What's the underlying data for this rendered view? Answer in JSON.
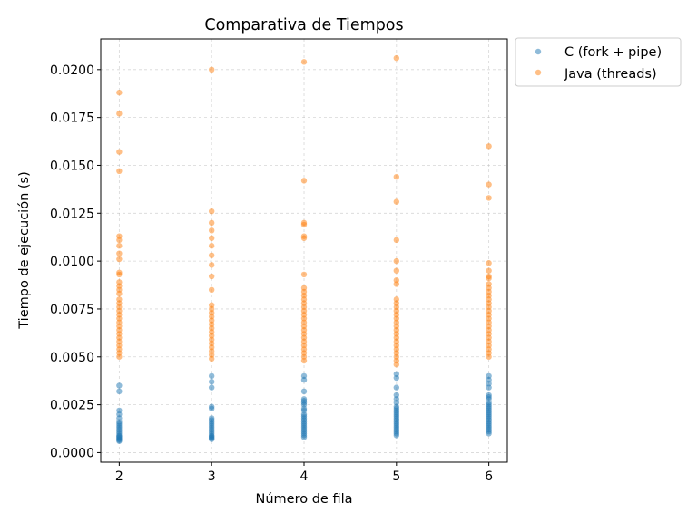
{
  "chart_data": {
    "type": "scatter",
    "title": "Comparativa de Tiempos",
    "xlabel": "Número de fila",
    "ylabel": "Tiempo de ejecución (s)",
    "xlim": [
      1.8,
      6.2
    ],
    "ylim": [
      -0.0005,
      0.0216
    ],
    "xticks": [
      2,
      3,
      4,
      5,
      6
    ],
    "yticks": [
      0.0,
      0.0025,
      0.005,
      0.0075,
      0.01,
      0.0125,
      0.015,
      0.0175,
      0.02
    ],
    "ytick_labels": [
      "0.0000",
      "0.0025",
      "0.0050",
      "0.0075",
      "0.0100",
      "0.0125",
      "0.0150",
      "0.0175",
      "0.0200"
    ],
    "grid": true,
    "legend_position": "outside-top-right",
    "series": [
      {
        "name": "C (fork + pipe)",
        "color": "#1f77b4",
        "points": [
          [
            2,
            0.0035
          ],
          [
            2,
            0.0032
          ],
          [
            2,
            0.0022
          ],
          [
            2,
            0.002
          ],
          [
            2,
            0.0018
          ],
          [
            2,
            0.0016
          ],
          [
            2,
            0.0015
          ],
          [
            2,
            0.0014
          ],
          [
            2,
            0.0013
          ],
          [
            2,
            0.0012
          ],
          [
            2,
            0.0011
          ],
          [
            2,
            0.001
          ],
          [
            2,
            0.0009
          ],
          [
            2,
            0.00085
          ],
          [
            2,
            0.0008
          ],
          [
            2,
            0.00075
          ],
          [
            2,
            0.0007
          ],
          [
            2,
            0.00065
          ],
          [
            2,
            0.0006
          ],
          [
            3,
            0.004
          ],
          [
            3,
            0.0037
          ],
          [
            3,
            0.0034
          ],
          [
            3,
            0.0024
          ],
          [
            3,
            0.0023
          ],
          [
            3,
            0.0018
          ],
          [
            3,
            0.0017
          ],
          [
            3,
            0.0016
          ],
          [
            3,
            0.0015
          ],
          [
            3,
            0.0014
          ],
          [
            3,
            0.0013
          ],
          [
            3,
            0.0012
          ],
          [
            3,
            0.0011
          ],
          [
            3,
            0.001
          ],
          [
            3,
            0.0009
          ],
          [
            3,
            0.00085
          ],
          [
            3,
            0.0008
          ],
          [
            3,
            0.00075
          ],
          [
            3,
            0.0007
          ],
          [
            4,
            0.004
          ],
          [
            4,
            0.0038
          ],
          [
            4,
            0.0032
          ],
          [
            4,
            0.0028
          ],
          [
            4,
            0.0027
          ],
          [
            4,
            0.0026
          ],
          [
            4,
            0.0025
          ],
          [
            4,
            0.0023
          ],
          [
            4,
            0.0022
          ],
          [
            4,
            0.002
          ],
          [
            4,
            0.0019
          ],
          [
            4,
            0.0018
          ],
          [
            4,
            0.0017
          ],
          [
            4,
            0.0016
          ],
          [
            4,
            0.0015
          ],
          [
            4,
            0.0014
          ],
          [
            4,
            0.0013
          ],
          [
            4,
            0.0012
          ],
          [
            4,
            0.0011
          ],
          [
            4,
            0.001
          ],
          [
            4,
            0.0009
          ],
          [
            4,
            0.0008
          ],
          [
            5,
            0.0041
          ],
          [
            5,
            0.0039
          ],
          [
            5,
            0.0034
          ],
          [
            5,
            0.003
          ],
          [
            5,
            0.0028
          ],
          [
            5,
            0.0026
          ],
          [
            5,
            0.0024
          ],
          [
            5,
            0.0023
          ],
          [
            5,
            0.0022
          ],
          [
            5,
            0.0021
          ],
          [
            5,
            0.002
          ],
          [
            5,
            0.0019
          ],
          [
            5,
            0.0018
          ],
          [
            5,
            0.0017
          ],
          [
            5,
            0.0016
          ],
          [
            5,
            0.0015
          ],
          [
            5,
            0.0014
          ],
          [
            5,
            0.0013
          ],
          [
            5,
            0.0012
          ],
          [
            5,
            0.0011
          ],
          [
            5,
            0.001
          ],
          [
            5,
            0.0009
          ],
          [
            6,
            0.004
          ],
          [
            6,
            0.0038
          ],
          [
            6,
            0.0036
          ],
          [
            6,
            0.0034
          ],
          [
            6,
            0.003
          ],
          [
            6,
            0.0029
          ],
          [
            6,
            0.0028
          ],
          [
            6,
            0.0026
          ],
          [
            6,
            0.0025
          ],
          [
            6,
            0.0024
          ],
          [
            6,
            0.0023
          ],
          [
            6,
            0.0022
          ],
          [
            6,
            0.0021
          ],
          [
            6,
            0.002
          ],
          [
            6,
            0.0019
          ],
          [
            6,
            0.0018
          ],
          [
            6,
            0.0017
          ],
          [
            6,
            0.0016
          ],
          [
            6,
            0.0015
          ],
          [
            6,
            0.0014
          ],
          [
            6,
            0.0013
          ],
          [
            6,
            0.0012
          ],
          [
            6,
            0.0011
          ],
          [
            6,
            0.001
          ]
        ]
      },
      {
        "name": "Java (threads)",
        "color": "#ff7f0e",
        "points": [
          [
            2,
            0.0188
          ],
          [
            2,
            0.0177
          ],
          [
            2,
            0.0157
          ],
          [
            2,
            0.0147
          ],
          [
            2,
            0.0113
          ],
          [
            2,
            0.0111
          ],
          [
            2,
            0.0108
          ],
          [
            2,
            0.0104
          ],
          [
            2,
            0.0101
          ],
          [
            2,
            0.0094
          ],
          [
            2,
            0.0093
          ],
          [
            2,
            0.0089
          ],
          [
            2,
            0.0087
          ],
          [
            2,
            0.0085
          ],
          [
            2,
            0.0083
          ],
          [
            2,
            0.008
          ],
          [
            2,
            0.0078
          ],
          [
            2,
            0.0076
          ],
          [
            2,
            0.0074
          ],
          [
            2,
            0.0072
          ],
          [
            2,
            0.007
          ],
          [
            2,
            0.0068
          ],
          [
            2,
            0.0066
          ],
          [
            2,
            0.0064
          ],
          [
            2,
            0.0062
          ],
          [
            2,
            0.006
          ],
          [
            2,
            0.0058
          ],
          [
            2,
            0.0056
          ],
          [
            2,
            0.0054
          ],
          [
            2,
            0.0052
          ],
          [
            2,
            0.005
          ],
          [
            3,
            0.02
          ],
          [
            3,
            0.0126
          ],
          [
            3,
            0.012
          ],
          [
            3,
            0.0116
          ],
          [
            3,
            0.0112
          ],
          [
            3,
            0.0108
          ],
          [
            3,
            0.0103
          ],
          [
            3,
            0.0098
          ],
          [
            3,
            0.0092
          ],
          [
            3,
            0.0085
          ],
          [
            3,
            0.0077
          ],
          [
            3,
            0.0075
          ],
          [
            3,
            0.0073
          ],
          [
            3,
            0.0071
          ],
          [
            3,
            0.0069
          ],
          [
            3,
            0.0067
          ],
          [
            3,
            0.0065
          ],
          [
            3,
            0.0063
          ],
          [
            3,
            0.0061
          ],
          [
            3,
            0.0059
          ],
          [
            3,
            0.0057
          ],
          [
            3,
            0.0055
          ],
          [
            3,
            0.0053
          ],
          [
            3,
            0.0051
          ],
          [
            3,
            0.0049
          ],
          [
            4,
            0.0204
          ],
          [
            4,
            0.0142
          ],
          [
            4,
            0.012
          ],
          [
            4,
            0.0119
          ],
          [
            4,
            0.0113
          ],
          [
            4,
            0.0112
          ],
          [
            4,
            0.0093
          ],
          [
            4,
            0.0086
          ],
          [
            4,
            0.0084
          ],
          [
            4,
            0.0082
          ],
          [
            4,
            0.008
          ],
          [
            4,
            0.0078
          ],
          [
            4,
            0.0076
          ],
          [
            4,
            0.0074
          ],
          [
            4,
            0.0072
          ],
          [
            4,
            0.007
          ],
          [
            4,
            0.0068
          ],
          [
            4,
            0.0066
          ],
          [
            4,
            0.0064
          ],
          [
            4,
            0.0062
          ],
          [
            4,
            0.006
          ],
          [
            4,
            0.0058
          ],
          [
            4,
            0.0056
          ],
          [
            4,
            0.0054
          ],
          [
            4,
            0.0052
          ],
          [
            4,
            0.005
          ],
          [
            4,
            0.0048
          ],
          [
            5,
            0.0206
          ],
          [
            5,
            0.0144
          ],
          [
            5,
            0.0131
          ],
          [
            5,
            0.0111
          ],
          [
            5,
            0.01
          ],
          [
            5,
            0.0095
          ],
          [
            5,
            0.009
          ],
          [
            5,
            0.0088
          ],
          [
            5,
            0.008
          ],
          [
            5,
            0.0078
          ],
          [
            5,
            0.0076
          ],
          [
            5,
            0.0074
          ],
          [
            5,
            0.0072
          ],
          [
            5,
            0.007
          ],
          [
            5,
            0.0068
          ],
          [
            5,
            0.0066
          ],
          [
            5,
            0.0064
          ],
          [
            5,
            0.0062
          ],
          [
            5,
            0.006
          ],
          [
            5,
            0.0058
          ],
          [
            5,
            0.0056
          ],
          [
            5,
            0.0054
          ],
          [
            5,
            0.0052
          ],
          [
            5,
            0.005
          ],
          [
            5,
            0.0048
          ],
          [
            5,
            0.0046
          ],
          [
            6,
            0.016
          ],
          [
            6,
            0.014
          ],
          [
            6,
            0.0133
          ],
          [
            6,
            0.0099
          ],
          [
            6,
            0.0095
          ],
          [
            6,
            0.0092
          ],
          [
            6,
            0.0091
          ],
          [
            6,
            0.0088
          ],
          [
            6,
            0.0086
          ],
          [
            6,
            0.0084
          ],
          [
            6,
            0.0082
          ],
          [
            6,
            0.008
          ],
          [
            6,
            0.0078
          ],
          [
            6,
            0.0076
          ],
          [
            6,
            0.0074
          ],
          [
            6,
            0.0072
          ],
          [
            6,
            0.007
          ],
          [
            6,
            0.0068
          ],
          [
            6,
            0.0066
          ],
          [
            6,
            0.0064
          ],
          [
            6,
            0.0062
          ],
          [
            6,
            0.006
          ],
          [
            6,
            0.0058
          ],
          [
            6,
            0.0056
          ],
          [
            6,
            0.0054
          ],
          [
            6,
            0.0052
          ],
          [
            6,
            0.005
          ]
        ]
      }
    ]
  }
}
